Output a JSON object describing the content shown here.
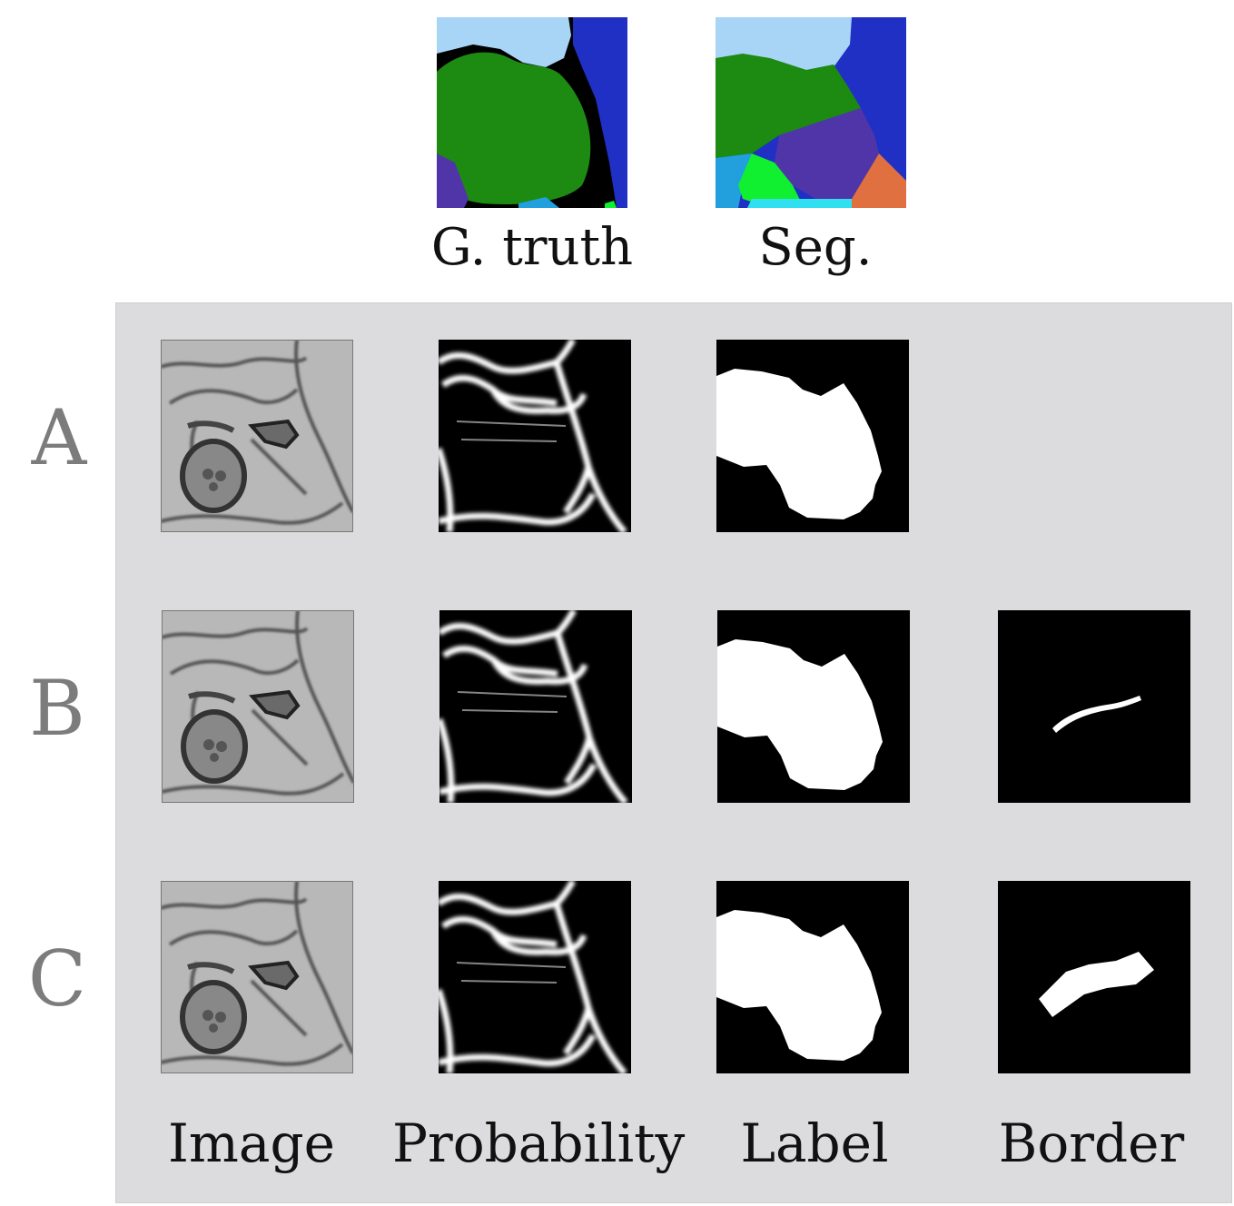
{
  "top": {
    "ground_truth_caption": "G. truth",
    "segmentation_caption": "Seg.",
    "colors": {
      "light_blue": "#a8d4f6",
      "dark_blue": "#2030c4",
      "green": "#1d8a12",
      "purple": "#5035a8",
      "cyan": "#22a0de",
      "bright_green": "#10f030",
      "orange": "#e07040",
      "black": "#000000"
    }
  },
  "rows": [
    {
      "letter": "A",
      "has_border": false
    },
    {
      "letter": "B",
      "has_border": true
    },
    {
      "letter": "C",
      "has_border": true
    }
  ],
  "columns": {
    "image": "Image",
    "probability": "Probability",
    "label": "Label",
    "border": "Border"
  }
}
